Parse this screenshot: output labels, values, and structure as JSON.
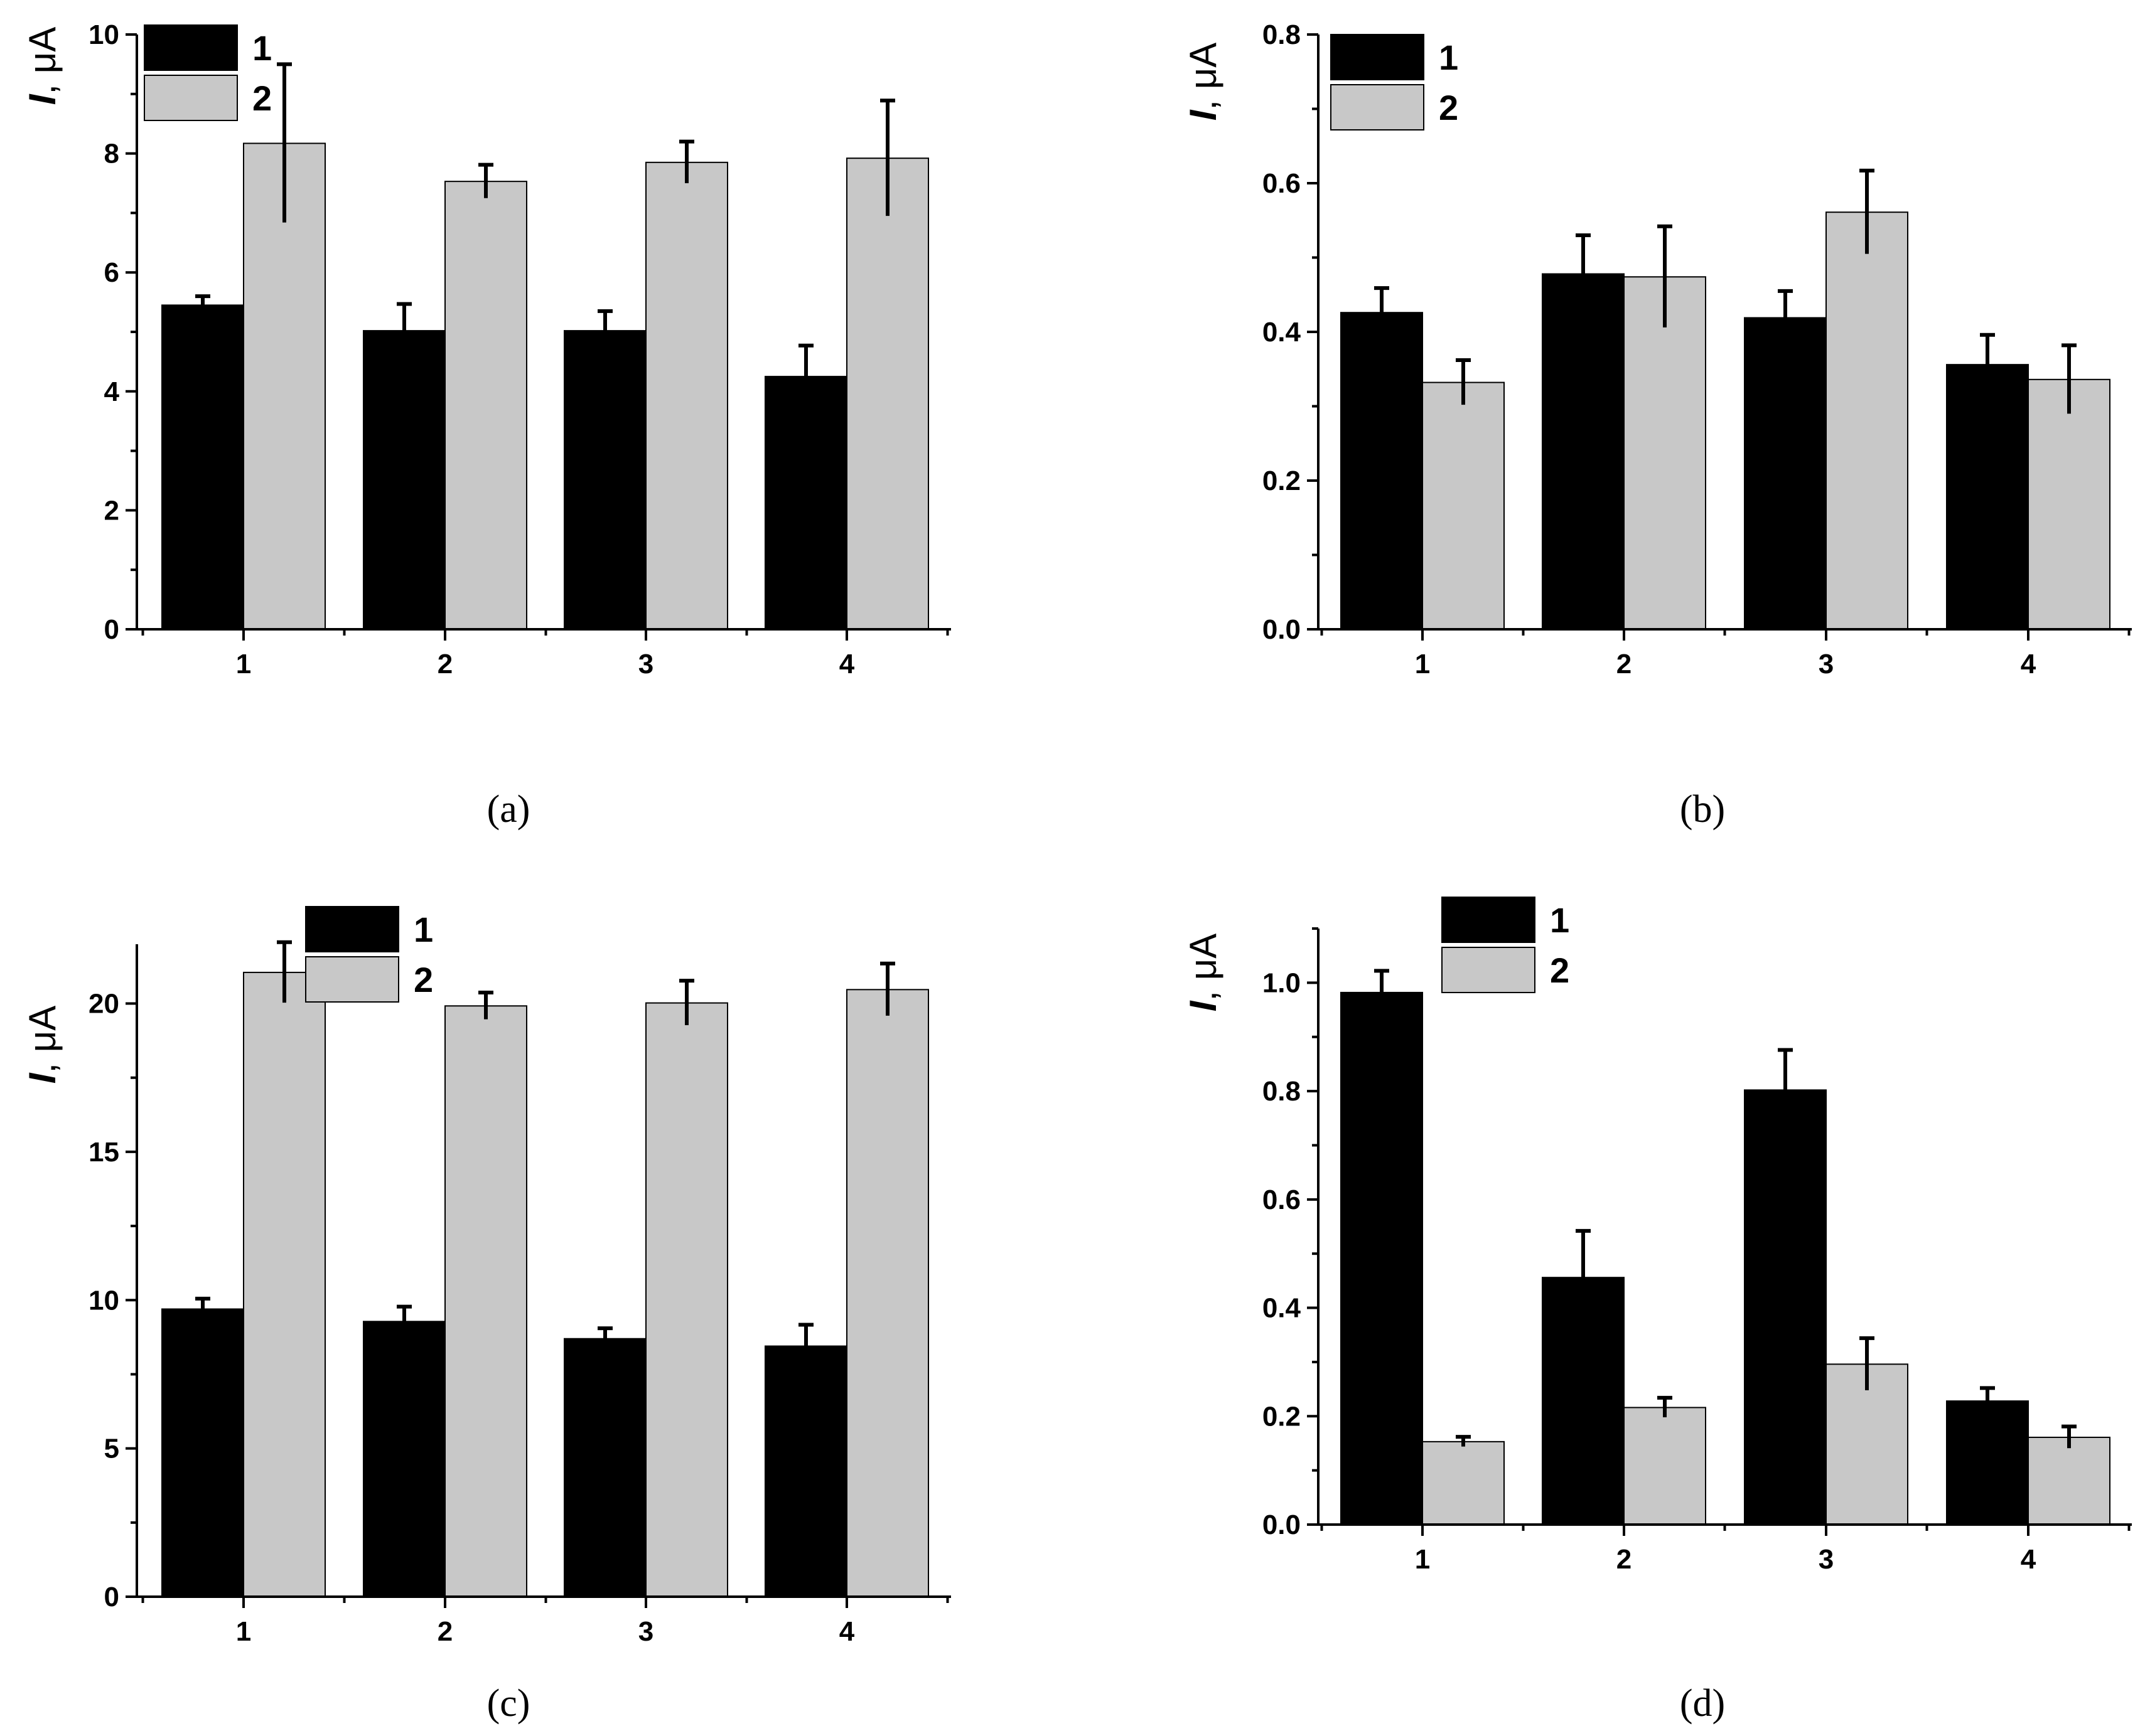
{
  "colors": {
    "series1": "#000000",
    "series2": "#c8c8c8",
    "axis": "#000000"
  },
  "chart_data": [
    {
      "type": "bar",
      "panel_caption": "(a)",
      "ylabel_italic": "I",
      "ylabel_unit": ", μA",
      "categories": [
        "1",
        "2",
        "3",
        "4"
      ],
      "ylim": [
        0,
        10
      ],
      "yticks": [
        0,
        2,
        4,
        6,
        8,
        10
      ],
      "ytick_labels": [
        "0",
        "2",
        "4",
        "6",
        "8",
        "10"
      ],
      "legend": "top-left",
      "series": [
        {
          "name": "1",
          "values": [
            5.45,
            5.02,
            5.02,
            4.25
          ],
          "errors": [
            0.15,
            0.45,
            0.33,
            0.52
          ]
        },
        {
          "name": "2",
          "values": [
            8.17,
            7.53,
            7.85,
            7.92
          ],
          "errors": [
            1.33,
            0.28,
            0.35,
            0.97
          ]
        }
      ]
    },
    {
      "type": "bar",
      "panel_caption": "(b)",
      "ylabel_italic": "I",
      "ylabel_unit": ", μA",
      "categories": [
        "1",
        "2",
        "3",
        "4"
      ],
      "ylim": [
        0,
        0.8
      ],
      "yticks": [
        0,
        0.2,
        0.4,
        0.6,
        0.8
      ],
      "ytick_labels": [
        "0.0",
        "0.2",
        "0.4",
        "0.6",
        "0.8"
      ],
      "legend": "top-left",
      "series": [
        {
          "name": "1",
          "values": [
            0.426,
            0.478,
            0.419,
            0.356
          ],
          "errors": [
            0.033,
            0.052,
            0.036,
            0.04
          ]
        },
        {
          "name": "2",
          "values": [
            0.332,
            0.474,
            0.561,
            0.336
          ],
          "errors": [
            0.03,
            0.068,
            0.056,
            0.046
          ]
        }
      ]
    },
    {
      "type": "bar",
      "panel_caption": "(c)",
      "ylabel_italic": "I",
      "ylabel_unit": ", μA",
      "categories": [
        "1",
        "2",
        "3",
        "4"
      ],
      "ylim": [
        0,
        22
      ],
      "yticks": [
        0,
        5,
        10,
        15,
        20
      ],
      "ytick_labels": [
        "0",
        "5",
        "10",
        "15",
        "20"
      ],
      "legend": "top-center",
      "series": [
        {
          "name": "1",
          "values": [
            9.7,
            9.28,
            8.7,
            8.45
          ],
          "errors": [
            0.35,
            0.5,
            0.35,
            0.72
          ]
        },
        {
          "name": "2",
          "values": [
            21.05,
            19.92,
            20.02,
            20.47
          ],
          "errors": [
            1.02,
            0.45,
            0.75,
            0.88
          ]
        }
      ]
    },
    {
      "type": "bar",
      "panel_caption": "(d)",
      "ylabel_italic": "I",
      "ylabel_unit": ", μA",
      "categories": [
        "1",
        "2",
        "3",
        "4"
      ],
      "ylim": [
        0,
        1.1
      ],
      "yticks": [
        0,
        0.2,
        0.4,
        0.6,
        0.8,
        1.0
      ],
      "ytick_labels": [
        "0.0",
        "0.2",
        "0.4",
        "0.6",
        "0.8",
        "1.0"
      ],
      "legend": "top-center",
      "series": [
        {
          "name": "1",
          "values": [
            0.982,
            0.456,
            0.802,
            0.228
          ],
          "errors": [
            0.04,
            0.086,
            0.074,
            0.024
          ]
        },
        {
          "name": "2",
          "values": [
            0.153,
            0.216,
            0.296,
            0.161
          ],
          "errors": [
            0.009,
            0.018,
            0.048,
            0.02
          ]
        }
      ]
    }
  ]
}
